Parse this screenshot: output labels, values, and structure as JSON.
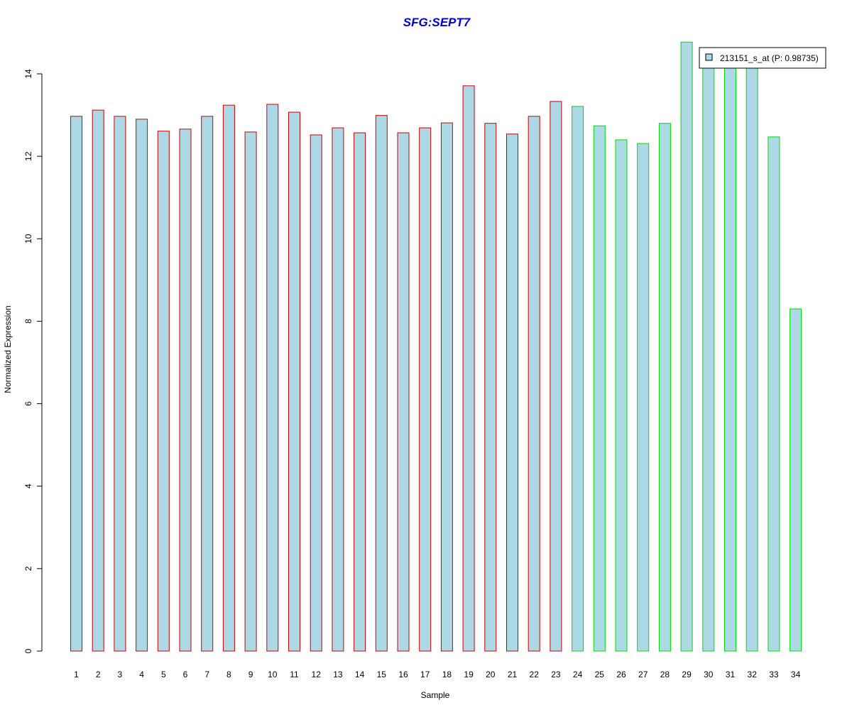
{
  "chart_data": {
    "type": "bar",
    "title": "SFG:SEPT7",
    "xlabel": "Sample",
    "ylabel": "Normalized Expression",
    "ylim": [
      0,
      14.8
    ],
    "y_ticks": [
      0,
      2,
      4,
      6,
      8,
      10,
      12,
      14
    ],
    "categories": [
      "1",
      "2",
      "3",
      "4",
      "5",
      "6",
      "7",
      "8",
      "9",
      "10",
      "11",
      "12",
      "13",
      "14",
      "15",
      "16",
      "17",
      "18",
      "19",
      "20",
      "21",
      "22",
      "23",
      "24",
      "25",
      "26",
      "27",
      "28",
      "29",
      "30",
      "31",
      "32",
      "33",
      "34"
    ],
    "values": [
      12.97,
      13.12,
      12.97,
      12.9,
      12.61,
      12.66,
      12.97,
      13.24,
      12.59,
      13.26,
      13.07,
      12.52,
      12.69,
      12.57,
      12.99,
      12.57,
      12.69,
      12.81,
      13.71,
      12.8,
      12.54,
      12.97,
      13.33,
      13.21,
      12.74,
      12.4,
      12.31,
      12.8,
      14.77,
      14.22,
      14.22,
      14.22,
      12.47,
      8.3
    ],
    "bar_fill": "#add8e6",
    "group_border_colors": [
      "#cc0000",
      "#00dd00"
    ],
    "border_group": [
      0,
      0,
      0,
      0,
      0,
      0,
      0,
      0,
      0,
      0,
      0,
      0,
      0,
      0,
      0,
      0,
      0,
      0,
      0,
      0,
      0,
      0,
      0,
      1,
      1,
      1,
      1,
      1,
      1,
      1,
      1,
      1,
      1,
      1
    ],
    "title_color": "#0000cc",
    "legend": {
      "label": "213151_s_at (P: 0.98735)",
      "placement": "top-right",
      "swatch_color": "#add8e6"
    },
    "grid": false
  }
}
